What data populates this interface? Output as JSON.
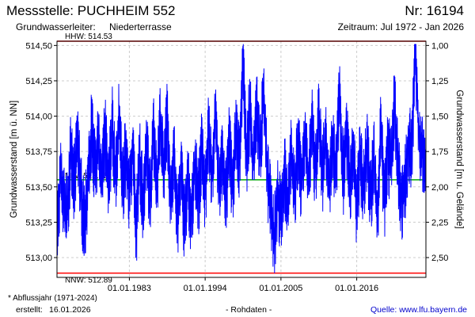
{
  "header": {
    "title": "Messstelle: PUCHHEIM 552",
    "number": "Nr: 16194",
    "aquifer_label": "Grundwasserleiter:",
    "aquifer_value": "Niederterrasse",
    "period": "Zeitraum: Jul 1972 - Jan 2026"
  },
  "footer": {
    "footnote": "* Abflussjahr (1971-2024)",
    "created_label": "erstellt:",
    "created_value": "16.01.2026",
    "data_status": "- Rohdaten -",
    "source": "Quelle: www.lfu.bayern.de"
  },
  "colors": {
    "series": "#0000ff",
    "hhw": "#ff0000",
    "nnw": "#ff0000",
    "mw": "#00aa00",
    "grid": "#cccccc"
  },
  "chart_data": {
    "type": "line",
    "ylabel": "Grundwasserstand [m ü. NN]",
    "ylabel_right": "Grundwasserstand [m u. Gelände]",
    "ylim": [
      512.86,
      514.53
    ],
    "xlim": [
      "1972-07-01",
      "2026-01-16"
    ],
    "y_ticks": [
      "514,50",
      "514,25",
      "514,00",
      "513,75",
      "513,50",
      "513,25",
      "513,00"
    ],
    "y_tick_values": [
      514.5,
      514.25,
      514.0,
      513.75,
      513.5,
      513.25,
      513.0
    ],
    "y2_ticks": [
      "1,00",
      "1,25",
      "1,50",
      "1,75",
      "2,00",
      "2,25",
      "2,50"
    ],
    "x_ticks": [
      "01.01.1983",
      "01.01.1994",
      "01.01.2005",
      "01.01.2016"
    ],
    "x_tick_dates": [
      "1983-01-01",
      "1994-01-01",
      "2005-01-01",
      "2016-01-01"
    ],
    "reference_lines": [
      {
        "label": "HHW: 514.53",
        "value": 514.53
      },
      {
        "label": "MW: 513.55",
        "value": 513.55
      },
      {
        "label": "NNW: 512.89",
        "value": 512.89
      }
    ],
    "series": [
      {
        "values": [
          [
            "1972-07-01",
            513.1
          ],
          [
            "1973-01-01",
            513.6
          ],
          [
            "1973-07-01",
            513.35
          ],
          [
            "1974-01-01",
            513.3
          ],
          [
            "1974-07-01",
            513.75
          ],
          [
            "1975-01-01",
            513.5
          ],
          [
            "1975-07-01",
            513.85
          ],
          [
            "1976-01-01",
            513.45
          ],
          [
            "1976-07-01",
            513.2
          ],
          [
            "1977-01-01",
            513.55
          ],
          [
            "1977-07-01",
            513.9
          ],
          [
            "1978-01-01",
            513.6
          ],
          [
            "1978-07-01",
            513.8
          ],
          [
            "1979-01-01",
            513.55
          ],
          [
            "1979-07-01",
            513.9
          ],
          [
            "1980-01-01",
            513.5
          ],
          [
            "1980-07-01",
            513.95
          ],
          [
            "1981-01-01",
            513.55
          ],
          [
            "1981-07-01",
            514.0
          ],
          [
            "1982-01-01",
            513.5
          ],
          [
            "1982-07-01",
            513.75
          ],
          [
            "1983-01-01",
            513.45
          ],
          [
            "1983-07-01",
            513.8
          ],
          [
            "1984-01-01",
            513.2
          ],
          [
            "1984-07-01",
            513.7
          ],
          [
            "1985-01-01",
            513.35
          ],
          [
            "1985-07-01",
            513.8
          ],
          [
            "1986-01-01",
            513.4
          ],
          [
            "1986-07-01",
            513.9
          ],
          [
            "1987-01-01",
            513.5
          ],
          [
            "1987-07-01",
            513.95
          ],
          [
            "1988-01-01",
            513.6
          ],
          [
            "1988-07-01",
            514.0
          ],
          [
            "1989-01-01",
            513.35
          ],
          [
            "1989-07-01",
            513.7
          ],
          [
            "1990-01-01",
            513.25
          ],
          [
            "1990-07-01",
            513.65
          ],
          [
            "1991-01-01",
            513.2
          ],
          [
            "1991-07-01",
            513.55
          ],
          [
            "1992-01-01",
            513.25
          ],
          [
            "1992-07-01",
            513.7
          ],
          [
            "1993-01-01",
            513.4
          ],
          [
            "1993-07-01",
            513.75
          ],
          [
            "1994-01-01",
            513.45
          ],
          [
            "1994-07-01",
            513.9
          ],
          [
            "1995-01-01",
            513.55
          ],
          [
            "1995-07-01",
            514.05
          ],
          [
            "1996-01-01",
            513.5
          ],
          [
            "1996-07-01",
            513.7
          ],
          [
            "1997-01-01",
            513.4
          ],
          [
            "1997-07-01",
            513.8
          ],
          [
            "1998-01-01",
            513.45
          ],
          [
            "1998-07-01",
            513.9
          ],
          [
            "1999-01-01",
            513.65
          ],
          [
            "1999-07-01",
            514.4
          ],
          [
            "2000-01-01",
            513.7
          ],
          [
            "2000-07-01",
            514.05
          ],
          [
            "2001-01-01",
            513.65
          ],
          [
            "2001-07-01",
            514.1
          ],
          [
            "2002-01-01",
            513.7
          ],
          [
            "2002-07-01",
            514.2
          ],
          [
            "2003-01-01",
            513.6
          ],
          [
            "2003-07-01",
            513.4
          ],
          [
            "2004-01-01",
            513.1
          ],
          [
            "2004-07-01",
            513.45
          ],
          [
            "2005-01-01",
            513.3
          ],
          [
            "2005-07-01",
            513.6
          ],
          [
            "2006-01-01",
            513.35
          ],
          [
            "2006-07-01",
            513.75
          ],
          [
            "2007-01-01",
            513.45
          ],
          [
            "2007-07-01",
            513.8
          ],
          [
            "2008-01-01",
            513.5
          ],
          [
            "2008-07-01",
            513.9
          ],
          [
            "2009-01-01",
            513.5
          ],
          [
            "2009-07-01",
            513.95
          ],
          [
            "2010-01-01",
            513.6
          ],
          [
            "2010-07-01",
            514.0
          ],
          [
            "2011-01-01",
            513.55
          ],
          [
            "2011-07-01",
            513.85
          ],
          [
            "2012-01-01",
            513.45
          ],
          [
            "2012-07-01",
            513.8
          ],
          [
            "2013-01-01",
            513.6
          ],
          [
            "2013-07-01",
            514.15
          ],
          [
            "2014-01-01",
            513.55
          ],
          [
            "2014-07-01",
            513.9
          ],
          [
            "2015-01-01",
            513.5
          ],
          [
            "2015-07-01",
            513.75
          ],
          [
            "2016-01-01",
            513.35
          ],
          [
            "2016-07-01",
            513.7
          ],
          [
            "2017-01-01",
            513.45
          ],
          [
            "2017-07-01",
            513.8
          ],
          [
            "2018-01-01",
            513.4
          ],
          [
            "2018-07-01",
            513.7
          ],
          [
            "2019-01-01",
            513.25
          ],
          [
            "2019-07-01",
            513.95
          ],
          [
            "2020-01-01",
            513.35
          ],
          [
            "2020-07-01",
            513.75
          ],
          [
            "2021-01-01",
            513.65
          ],
          [
            "2021-07-01",
            514.1
          ],
          [
            "2022-01-01",
            513.6
          ],
          [
            "2022-07-01",
            513.4
          ],
          [
            "2023-01-01",
            513.5
          ],
          [
            "2023-07-01",
            513.8
          ],
          [
            "2024-01-01",
            513.75
          ],
          [
            "2024-07-01",
            514.5
          ],
          [
            "2025-01-01",
            513.85
          ],
          [
            "2025-07-01",
            513.7
          ],
          [
            "2026-01-01",
            513.65
          ]
        ]
      }
    ]
  }
}
